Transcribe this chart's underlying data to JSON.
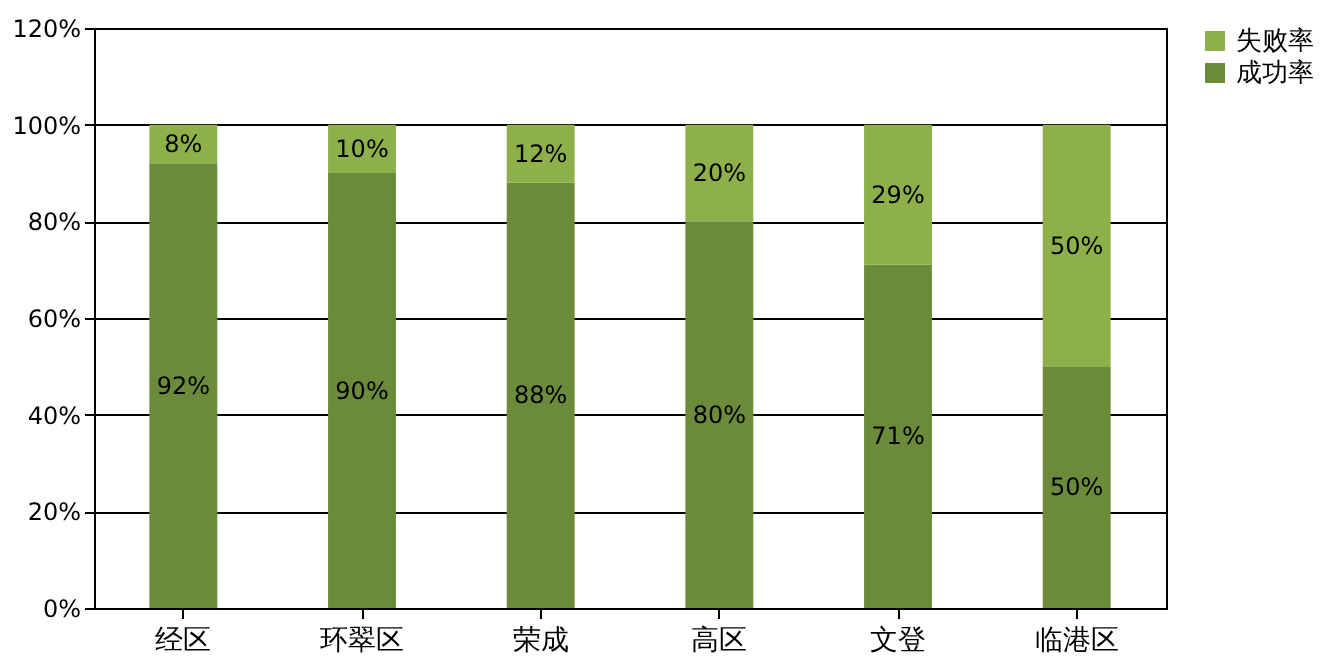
{
  "chart_data": {
    "type": "bar",
    "stacked": true,
    "categories": [
      "经区",
      "环翠区",
      "荣成",
      "高区",
      "文登",
      "临港区"
    ],
    "series": [
      {
        "name": "成功率",
        "color": "#6b8a3a",
        "values": [
          92,
          90,
          88,
          80,
          71,
          50
        ],
        "value_labels": [
          "92%",
          "90%",
          "88%",
          "80%",
          "71%",
          "50%"
        ]
      },
      {
        "name": "失败率",
        "color": "#8db04b",
        "values": [
          8,
          10,
          12,
          20,
          29,
          50
        ],
        "value_labels": [
          "8%",
          "10%",
          "12%",
          "20%",
          "29%",
          "50%"
        ]
      }
    ],
    "ylim": [
      0,
      120
    ],
    "yticks": [
      {
        "value": 0,
        "label": "0%"
      },
      {
        "value": 20,
        "label": "20%"
      },
      {
        "value": 40,
        "label": "40%"
      },
      {
        "value": 60,
        "label": "60%"
      },
      {
        "value": 80,
        "label": "80%"
      },
      {
        "value": 100,
        "label": "100%"
      },
      {
        "value": 120,
        "label": "120%"
      }
    ],
    "grid": "y",
    "legend": "right"
  }
}
